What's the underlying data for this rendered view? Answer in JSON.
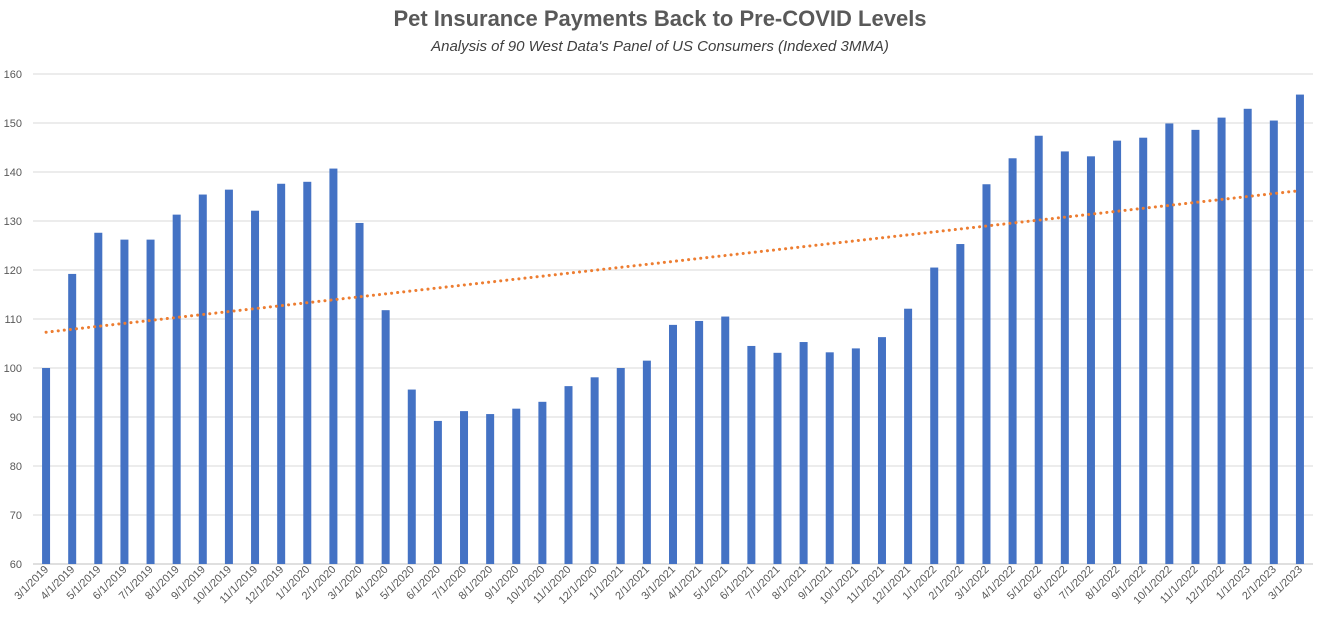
{
  "chart_data": {
    "type": "bar",
    "title": "Pet Insurance Payments Back to Pre-COVID Levels",
    "subtitle": "Analysis of 90 West Data's Panel of US Consumers (Indexed 3MMA)",
    "xlabel": "",
    "ylabel": "",
    "ylim": [
      60,
      160
    ],
    "yticks": [
      60,
      70,
      80,
      90,
      100,
      110,
      120,
      130,
      140,
      150,
      160
    ],
    "grid": true,
    "categories": [
      "3/1/2019",
      "4/1/2019",
      "5/1/2019",
      "6/1/2019",
      "7/1/2019",
      "8/1/2019",
      "9/1/2019",
      "10/1/2019",
      "11/1/2019",
      "12/1/2019",
      "1/1/2020",
      "2/1/2020",
      "3/1/2020",
      "4/1/2020",
      "5/1/2020",
      "6/1/2020",
      "7/1/2020",
      "8/1/2020",
      "9/1/2020",
      "10/1/2020",
      "11/1/2020",
      "12/1/2020",
      "1/1/2021",
      "2/1/2021",
      "3/1/2021",
      "4/1/2021",
      "5/1/2021",
      "6/1/2021",
      "7/1/2021",
      "8/1/2021",
      "9/1/2021",
      "10/1/2021",
      "11/1/2021",
      "12/1/2021",
      "1/1/2022",
      "2/1/2022",
      "3/1/2022",
      "4/1/2022",
      "5/1/2022",
      "6/1/2022",
      "7/1/2022",
      "8/1/2022",
      "9/1/2022",
      "10/1/2022",
      "11/1/2022",
      "12/1/2022",
      "1/1/2023",
      "2/1/2023",
      "3/1/2023"
    ],
    "series": [
      {
        "name": "Indexed 3MMA",
        "color": "#4472C4",
        "values": [
          100,
          119.2,
          127.6,
          126.2,
          126.2,
          131.3,
          135.4,
          136.4,
          132.1,
          137.6,
          138.0,
          140.7,
          129.6,
          111.8,
          95.6,
          89.2,
          91.2,
          90.6,
          91.7,
          93.1,
          96.3,
          98.1,
          100.0,
          101.5,
          108.8,
          109.6,
          110.5,
          104.5,
          103.1,
          105.3,
          103.2,
          104.0,
          106.3,
          112.1,
          120.5,
          125.3,
          137.5,
          142.8,
          147.4,
          144.2,
          143.2,
          146.4,
          147.0,
          149.9,
          148.6,
          151.1,
          152.9,
          150.5,
          155.8
        ]
      }
    ],
    "trendline": {
      "type": "linear",
      "color": "#ED7D31",
      "start": 107.3,
      "end": 136.2
    }
  }
}
